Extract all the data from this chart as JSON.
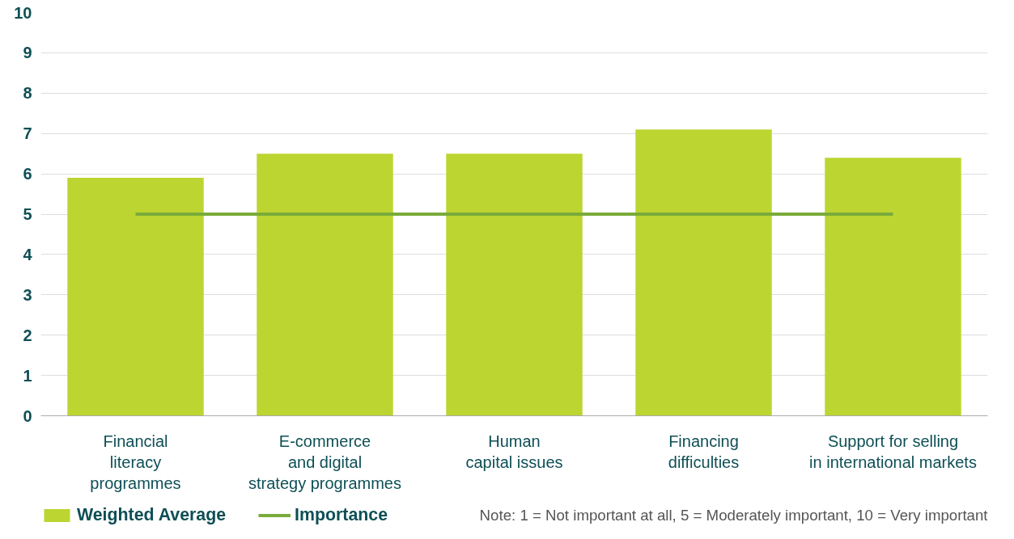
{
  "chart_data": {
    "type": "bar",
    "categories": [
      "Financial\nliteracy\nprogrammes",
      "E-commerce\nand digital\nstrategy programmes",
      "Human\ncapital issues",
      "Financing\ndifficulties",
      "Support for selling\nin international markets"
    ],
    "series": [
      {
        "name": "Weighted Average",
        "color": "#bdd531",
        "values": [
          5.9,
          6.5,
          6.5,
          7.1,
          6.4
        ]
      },
      {
        "name": "Importance",
        "type": "line",
        "color": "#7aab3a",
        "values": [
          5.0,
          5.0,
          5.0,
          5.0,
          5.0
        ]
      }
    ],
    "ylim": [
      0,
      10
    ],
    "yticks": [
      0,
      1,
      2,
      3,
      4,
      5,
      6,
      7,
      8,
      9,
      10
    ],
    "grid": "y",
    "legend": "bottom left",
    "annotations": [
      "Note: 1 = Not important at all, 5 = Moderately important, 10 = Very important"
    ]
  }
}
